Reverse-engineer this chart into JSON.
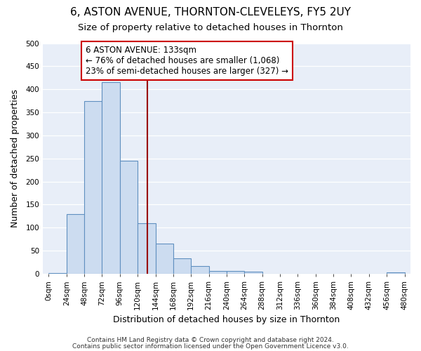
{
  "title": "6, ASTON AVENUE, THORNTON-CLEVELEYS, FY5 2UY",
  "subtitle": "Size of property relative to detached houses in Thornton",
  "xlabel": "Distribution of detached houses by size in Thornton",
  "ylabel": "Number of detached properties",
  "bin_edges": [
    0,
    24,
    48,
    72,
    96,
    120,
    144,
    168,
    192,
    216,
    240,
    264,
    288,
    312,
    336,
    360,
    384,
    408,
    432,
    456,
    480
  ],
  "bin_heights": [
    2,
    130,
    375,
    415,
    245,
    110,
    65,
    33,
    17,
    6,
    6,
    5,
    0,
    0,
    0,
    0,
    0,
    0,
    0,
    3
  ],
  "bar_color": "#ccdcf0",
  "bar_edge_color": "#6090c0",
  "vline_x": 133,
  "vline_color": "#990000",
  "annotation_box_color": "#cc0000",
  "annotation_text_line1": "6 ASTON AVENUE: 133sqm",
  "annotation_text_line2": "← 76% of detached houses are smaller (1,068)",
  "annotation_text_line3": "23% of semi-detached houses are larger (327) →",
  "ylim": [
    0,
    500
  ],
  "xlim_min": -8,
  "xlim_max": 488,
  "yticks": [
    0,
    50,
    100,
    150,
    200,
    250,
    300,
    350,
    400,
    450,
    500
  ],
  "footer_line1": "Contains HM Land Registry data © Crown copyright and database right 2024.",
  "footer_line2": "Contains public sector information licensed under the Open Government Licence v3.0.",
  "fig_background_color": "#ffffff",
  "plot_background_color": "#e8eef8",
  "grid_color": "#ffffff",
  "title_fontsize": 11,
  "subtitle_fontsize": 9.5,
  "axis_label_fontsize": 9,
  "tick_fontsize": 7.5,
  "annotation_fontsize": 8.5,
  "footer_fontsize": 6.5
}
